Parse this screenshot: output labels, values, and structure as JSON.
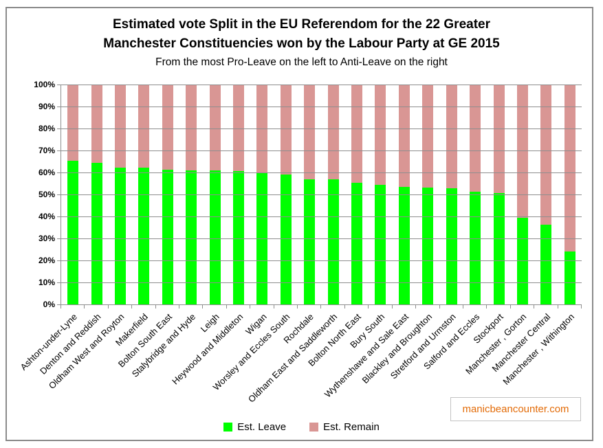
{
  "title": {
    "line1": "Estimated vote Split in the EU Referendom for the 22 Greater",
    "line2": "Manchester Constituencies won by the Labour Party at GE 2015",
    "subtitle": "From the most Pro-Leave on the left to Anti-Leave on the right"
  },
  "watermark": "manicbeancounter.com",
  "legend": [
    {
      "label": "Est. Leave",
      "color": "#00ff00"
    },
    {
      "label": "Est. Remain",
      "color": "#d99694"
    }
  ],
  "colors": {
    "leave": "#00ff00",
    "remain": "#d99694",
    "gridline": "#8e8e8e",
    "frame_border": "#8a8a8a",
    "watermark_text": "#e36c09",
    "watermark_border": "#c3c3c3"
  },
  "chart_data": {
    "type": "bar",
    "stacked": true,
    "stack_total": 100,
    "title": "Estimated vote Split in the EU Referendom for the 22 Greater Manchester Constituencies won by the Labour Party at GE 2015",
    "subtitle": "From the most Pro-Leave on the left to Anti-Leave on the right",
    "xlabel": "",
    "ylabel": "",
    "ylim": [
      0,
      100
    ],
    "yticks": [
      "100%",
      "90%",
      "80%",
      "70%",
      "60%",
      "50%",
      "40%",
      "30%",
      "20%",
      "10%",
      "0%"
    ],
    "grid": "horizontal",
    "legend_position": "bottom-center",
    "categories": [
      "Ashton-under-Lyne",
      "Denton and Reddish",
      "Oldham West and Royton",
      "Makerfield",
      "Bolton South East",
      "Stalybridge and Hyde",
      "Leigh",
      "Heywood and Middleton",
      "Wigan",
      "Worsley and Eccles South",
      "Rochdale",
      "Oldham East and Saddleworth",
      "Bolton North East",
      "Bury South",
      "Wythenshawe and Sale East",
      "Blackley and Broughton",
      "Stretford and Urmston",
      "Salford and Eccles",
      "Stockport",
      "Manchester , Gorton",
      "Manchester Central",
      "Manchester , Withington"
    ],
    "series": [
      {
        "name": "Est. Leave",
        "color": "#00ff00",
        "values": [
          65.4,
          64.5,
          62.3,
          62.1,
          61.4,
          61.0,
          60.9,
          60.6,
          59.8,
          59.2,
          57.0,
          56.9,
          55.3,
          54.4,
          53.5,
          53.2,
          52.9,
          51.3,
          50.7,
          39.3,
          36.4,
          24.0
        ]
      },
      {
        "name": "Est. Remain",
        "color": "#d99694",
        "values": [
          34.6,
          35.5,
          37.7,
          37.9,
          38.6,
          39.0,
          39.1,
          39.4,
          40.2,
          40.8,
          43.0,
          43.1,
          44.7,
          45.6,
          46.5,
          46.8,
          47.1,
          48.7,
          49.3,
          60.7,
          63.6,
          76.0
        ]
      }
    ]
  }
}
